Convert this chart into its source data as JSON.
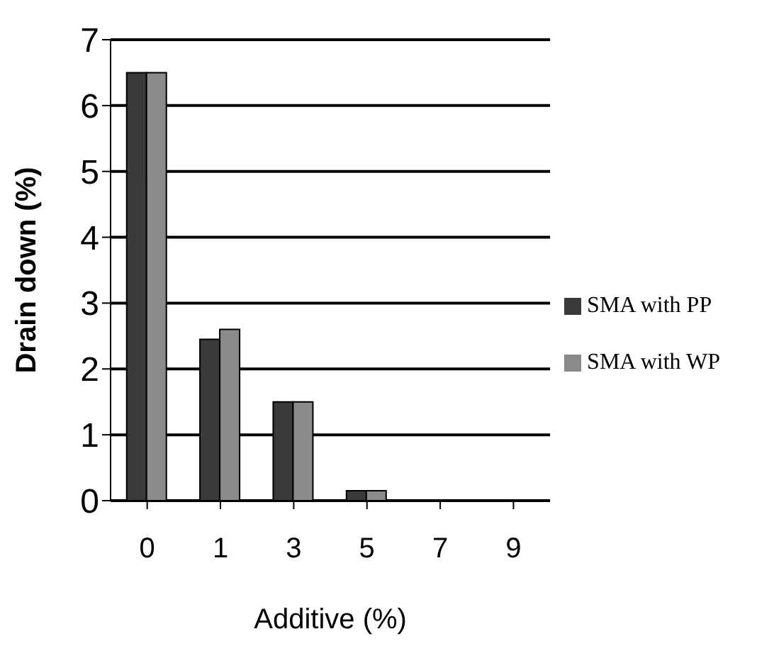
{
  "chart_data": {
    "type": "bar",
    "xlabel": "Additive (%)",
    "ylabel": "Drain down (%)",
    "categories": [
      "0",
      "1",
      "3",
      "5",
      "7",
      "9"
    ],
    "series": [
      {
        "name": "SMA with PP",
        "color": "#3a3a3a",
        "values": [
          6.5,
          2.45,
          1.5,
          0.15,
          0,
          0
        ]
      },
      {
        "name": "SMA with WP",
        "color": "#8a8a8a",
        "values": [
          6.5,
          2.6,
          1.5,
          0.15,
          0,
          0
        ]
      }
    ],
    "ylim": [
      0,
      7
    ],
    "yticks": [
      0,
      1,
      2,
      3,
      4,
      5,
      6,
      7
    ],
    "grid": "y",
    "legend": "right"
  }
}
